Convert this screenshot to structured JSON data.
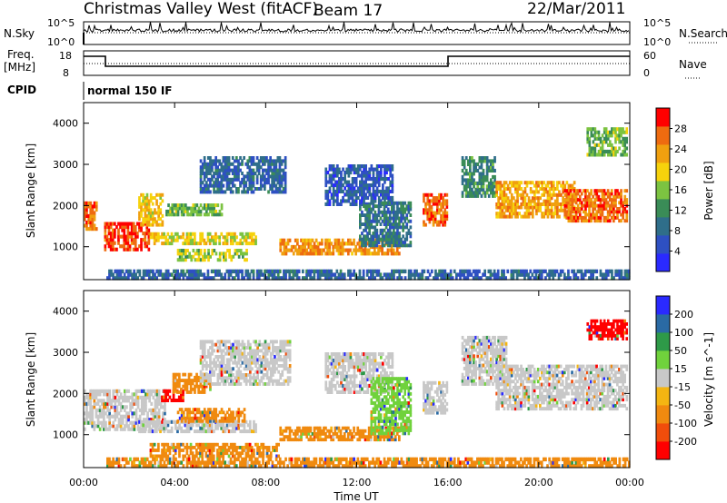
{
  "header": {
    "station": "Christmas Valley West (fitACF)",
    "beam": "Beam 17",
    "date": "22/Mar/2011"
  },
  "params": {
    "nsky_label": "N.Sky",
    "nsearch_label": "N.Search",
    "log_top": "10^5",
    "log_bottom": "10^0",
    "freq_label": "Freq.",
    "freq_unit": "[MHz]",
    "freq_ticks": [
      "18",
      "8"
    ],
    "nave_label": "Nave",
    "nave_ticks": [
      "60",
      "0"
    ],
    "cpid_label": "CPID",
    "cpid_value": "normal 150 IF"
  },
  "colors": {
    "power": [
      "#2a2aff",
      "#2e50c2",
      "#2f6e8a",
      "#3a8c57",
      "#7cc341",
      "#f6d20c",
      "#f0a00f",
      "#ee6b10",
      "#ff0000"
    ],
    "velocity": [
      "#ff0000",
      "#f14d0b",
      "#f08a0f",
      "#f4b512",
      "#c8c8c8",
      "#70d23c",
      "#2e9a48",
      "#2a6aa4",
      "#2a2aff"
    ]
  },
  "chart_data": [
    {
      "type": "heatmap",
      "name": "power",
      "ylabel": "Slant Range [km]",
      "xlabel": "",
      "y_ticks": [
        "1000",
        "2000",
        "3000",
        "4000"
      ],
      "ylim": [
        200,
        4500
      ],
      "xlim": [
        0,
        24
      ],
      "colorbar_label": "Power [dB]",
      "colorbar_ticks": [
        "4",
        "8",
        "12",
        "16",
        "20",
        "24",
        "28"
      ],
      "colorbar_range": [
        0,
        30
      ],
      "echo_regions": [
        {
          "t": [
            0.0,
            0.6
          ],
          "r": [
            1400,
            2100
          ],
          "level": 26
        },
        {
          "t": [
            0.9,
            2.9
          ],
          "r": [
            900,
            1600
          ],
          "level": 28
        },
        {
          "t": [
            2.4,
            3.5
          ],
          "r": [
            1500,
            2300
          ],
          "level": 20
        },
        {
          "t": [
            2.9,
            7.6
          ],
          "r": [
            1050,
            1350
          ],
          "level": 18
        },
        {
          "t": [
            3.6,
            6.1
          ],
          "r": [
            1750,
            2050
          ],
          "level": 14
        },
        {
          "t": [
            4.1,
            7.2
          ],
          "r": [
            650,
            950
          ],
          "level": 16
        },
        {
          "t": [
            5.1,
            8.9
          ],
          "r": [
            2300,
            3200
          ],
          "level": 6
        },
        {
          "t": [
            8.6,
            13.9
          ],
          "r": [
            800,
            1200
          ],
          "level": 24
        },
        {
          "t": [
            10.6,
            13.6
          ],
          "r": [
            2000,
            3000
          ],
          "level": 5
        },
        {
          "t": [
            12.1,
            14.4
          ],
          "r": [
            1000,
            2100
          ],
          "level": 8
        },
        {
          "t": [
            14.9,
            16.0
          ],
          "r": [
            1500,
            2300
          ],
          "level": 26
        },
        {
          "t": [
            16.6,
            18.1
          ],
          "r": [
            2200,
            3200
          ],
          "level": 10
        },
        {
          "t": [
            18.1,
            21.6
          ],
          "r": [
            1700,
            2600
          ],
          "level": 22
        },
        {
          "t": [
            21.1,
            23.9
          ],
          "r": [
            1600,
            2400
          ],
          "level": 26
        },
        {
          "t": [
            22.1,
            23.9
          ],
          "r": [
            3200,
            3900
          ],
          "level": 14
        },
        {
          "t": [
            1.0,
            24.0
          ],
          "r": [
            200,
            450
          ],
          "level": 6
        }
      ]
    },
    {
      "type": "heatmap",
      "name": "velocity",
      "ylabel": "Slant Range [km]",
      "xlabel": "Time UT",
      "x_ticks": [
        "00:00",
        "04:00",
        "08:00",
        "12:00",
        "16:00",
        "20:00",
        "00:00"
      ],
      "y_ticks": [
        "1000",
        "2000",
        "3000",
        "4000"
      ],
      "ylim": [
        200,
        4500
      ],
      "xlim": [
        0,
        24
      ],
      "colorbar_label": "Velocity [m s^-1]",
      "colorbar_ticks": [
        "-200",
        "-100",
        "-50",
        "-15",
        "15",
        "50",
        "100",
        "200"
      ],
      "echo_regions": [
        {
          "t": [
            0.0,
            3.6
          ],
          "r": [
            1100,
            2100
          ],
          "level": 0
        },
        {
          "t": [
            3.4,
            4.4
          ],
          "r": [
            1800,
            2100
          ],
          "level": -200
        },
        {
          "t": [
            2.4,
            7.6
          ],
          "r": [
            1050,
            1350
          ],
          "level": 0
        },
        {
          "t": [
            2.9,
            8.6
          ],
          "r": [
            450,
            800
          ],
          "level": -50
        },
        {
          "t": [
            4.1,
            7.1
          ],
          "r": [
            1300,
            1650
          ],
          "level": -50
        },
        {
          "t": [
            3.9,
            5.6
          ],
          "r": [
            2000,
            2500
          ],
          "level": -50
        },
        {
          "t": [
            5.1,
            9.1
          ],
          "r": [
            2200,
            3300
          ],
          "level": 0
        },
        {
          "t": [
            8.6,
            13.9
          ],
          "r": [
            850,
            1200
          ],
          "level": -50
        },
        {
          "t": [
            10.6,
            13.6
          ],
          "r": [
            2000,
            3000
          ],
          "level": 0
        },
        {
          "t": [
            12.6,
            14.4
          ],
          "r": [
            1000,
            2400
          ],
          "level": 30
        },
        {
          "t": [
            14.9,
            16.0
          ],
          "r": [
            1500,
            2300
          ],
          "level": 0
        },
        {
          "t": [
            16.6,
            18.6
          ],
          "r": [
            2200,
            3400
          ],
          "level": 0
        },
        {
          "t": [
            18.1,
            23.9
          ],
          "r": [
            1600,
            2700
          ],
          "level": 0
        },
        {
          "t": [
            22.1,
            23.9
          ],
          "r": [
            3300,
            3800
          ],
          "level": -200
        },
        {
          "t": [
            1.0,
            24.0
          ],
          "r": [
            200,
            450
          ],
          "level": -50
        }
      ]
    }
  ]
}
